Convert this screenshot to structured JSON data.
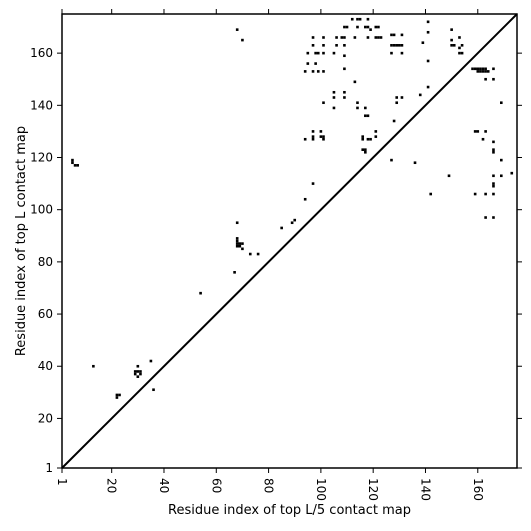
{
  "chart_data": {
    "type": "scatter",
    "title": "",
    "xlabel": "Residue index of top L/5 contact map",
    "ylabel": "Residue index of top L contact map",
    "xlim": [
      1,
      175
    ],
    "ylim": [
      1,
      175
    ],
    "xticks": [
      1,
      20,
      40,
      60,
      80,
      100,
      120,
      140,
      160
    ],
    "yticks": [
      1,
      20,
      40,
      60,
      80,
      100,
      120,
      140,
      160
    ],
    "grid": false,
    "diagonal_line": true,
    "marker": "square",
    "color": "#000000",
    "upper_triangle_points": [
      [
        68,
        169
      ],
      [
        70,
        165
      ],
      [
        94,
        153
      ],
      [
        95,
        160
      ],
      [
        95,
        156
      ],
      [
        97,
        166
      ],
      [
        97,
        163
      ],
      [
        98,
        160
      ],
      [
        99,
        160
      ],
      [
        98,
        156
      ],
      [
        97,
        153
      ],
      [
        99,
        153
      ],
      [
        101,
        166
      ],
      [
        101,
        163
      ],
      [
        101,
        160
      ],
      [
        101,
        153
      ],
      [
        106,
        166
      ],
      [
        106,
        163
      ],
      [
        105,
        160
      ],
      [
        108,
        166
      ],
      [
        109,
        170
      ],
      [
        110,
        170
      ],
      [
        109,
        166
      ],
      [
        109,
        163
      ],
      [
        109,
        159
      ],
      [
        109,
        154
      ],
      [
        112,
        173
      ],
      [
        113,
        166
      ],
      [
        114,
        170
      ],
      [
        114,
        173
      ],
      [
        115,
        173
      ],
      [
        117,
        170
      ],
      [
        118,
        170
      ],
      [
        118,
        173
      ],
      [
        119,
        169
      ],
      [
        118,
        166
      ],
      [
        121,
        170
      ],
      [
        122,
        170
      ],
      [
        121,
        166
      ],
      [
        122,
        166
      ],
      [
        123,
        166
      ],
      [
        127,
        167
      ],
      [
        128,
        167
      ],
      [
        127,
        163
      ],
      [
        128,
        163
      ],
      [
        129,
        163
      ],
      [
        130,
        163
      ],
      [
        131,
        167
      ],
      [
        131,
        163
      ],
      [
        127,
        160
      ],
      [
        131,
        160
      ],
      [
        139,
        164
      ],
      [
        141,
        172
      ],
      [
        141,
        168
      ],
      [
        150,
        169
      ],
      [
        150,
        165
      ],
      [
        150,
        163
      ],
      [
        151,
        163
      ],
      [
        153,
        166
      ],
      [
        153,
        162
      ],
      [
        154,
        163
      ],
      [
        153,
        160
      ],
      [
        154,
        160
      ],
      [
        101,
        141
      ],
      [
        105,
        145
      ],
      [
        105,
        143
      ],
      [
        105,
        139
      ],
      [
        109,
        145
      ],
      [
        109,
        143
      ],
      [
        113,
        149
      ],
      [
        114,
        141
      ],
      [
        114,
        139
      ],
      [
        117,
        139
      ],
      [
        117,
        136
      ],
      [
        118,
        136
      ],
      [
        129,
        143
      ],
      [
        129,
        141
      ],
      [
        131,
        143
      ],
      [
        138,
        144
      ],
      [
        141,
        147
      ],
      [
        141,
        157
      ],
      [
        158,
        154
      ],
      [
        159,
        154
      ],
      [
        160,
        154
      ],
      [
        161,
        154
      ],
      [
        162,
        154
      ],
      [
        163,
        154
      ],
      [
        160,
        153
      ],
      [
        161,
        153
      ],
      [
        162,
        153
      ],
      [
        163,
        153
      ],
      [
        164,
        153
      ],
      [
        166,
        154
      ],
      [
        163,
        150
      ],
      [
        166,
        150
      ],
      [
        169,
        141
      ]
    ],
    "lower_triangle_points": [
      [
        5,
        119
      ],
      [
        5,
        118
      ],
      [
        6,
        117
      ],
      [
        7,
        117
      ],
      [
        13,
        40
      ],
      [
        22,
        29
      ],
      [
        22,
        28
      ],
      [
        23,
        29
      ],
      [
        29,
        38
      ],
      [
        29,
        37
      ],
      [
        30,
        36
      ],
      [
        30,
        38
      ],
      [
        31,
        38
      ],
      [
        31,
        37
      ],
      [
        30,
        40
      ],
      [
        35,
        42
      ],
      [
        36,
        31
      ],
      [
        54,
        68
      ],
      [
        67,
        76
      ],
      [
        68,
        95
      ],
      [
        68,
        89
      ],
      [
        68,
        88
      ],
      [
        68,
        87
      ],
      [
        68,
        86
      ],
      [
        69,
        87
      ],
      [
        69,
        86
      ],
      [
        70,
        87
      ],
      [
        70,
        85
      ],
      [
        73,
        83
      ],
      [
        76,
        83
      ],
      [
        85,
        93
      ],
      [
        89,
        95
      ],
      [
        90,
        96
      ],
      [
        94,
        104
      ],
      [
        94,
        127
      ],
      [
        97,
        110
      ],
      [
        97,
        130
      ],
      [
        97,
        128
      ],
      [
        97,
        127
      ],
      [
        100,
        130
      ],
      [
        100,
        128
      ],
      [
        101,
        128
      ],
      [
        101,
        127
      ],
      [
        116,
        128
      ],
      [
        116,
        127
      ],
      [
        116,
        123
      ],
      [
        117,
        122
      ],
      [
        117,
        123
      ],
      [
        118,
        127
      ],
      [
        119,
        127
      ],
      [
        121,
        130
      ],
      [
        121,
        128
      ],
      [
        127,
        119
      ],
      [
        128,
        134
      ],
      [
        136,
        118
      ],
      [
        142,
        106
      ],
      [
        149,
        113
      ],
      [
        159,
        130
      ],
      [
        160,
        130
      ],
      [
        162,
        127
      ],
      [
        163,
        130
      ],
      [
        159,
        106
      ],
      [
        163,
        106
      ],
      [
        163,
        97
      ],
      [
        166,
        126
      ],
      [
        166,
        123
      ],
      [
        166,
        122
      ],
      [
        166,
        113
      ],
      [
        166,
        110
      ],
      [
        166,
        109
      ],
      [
        166,
        106
      ],
      [
        166,
        97
      ],
      [
        169,
        119
      ],
      [
        169,
        113
      ],
      [
        173,
        114
      ]
    ]
  }
}
